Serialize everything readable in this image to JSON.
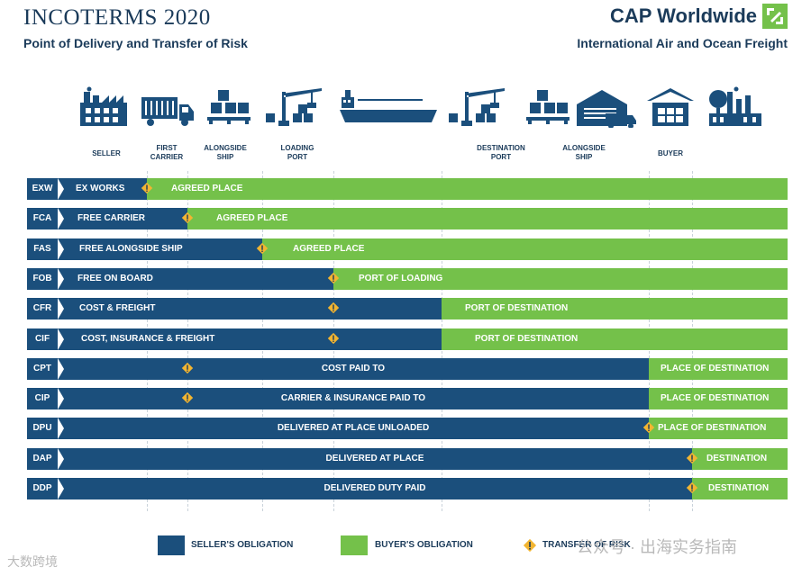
{
  "header": {
    "title": "INCOTERMS 2020",
    "subtitle": "Point of Delivery and Transfer of Risk",
    "brand": "CAP Worldwide",
    "brand_tagline": "International Air and Ocean Freight"
  },
  "stages": [
    {
      "label": "SELLER",
      "icon": "factory-icon"
    },
    {
      "label": "FIRST\nCARRIER",
      "icon": "truck-icon"
    },
    {
      "label": "ALONGSIDE\nSHIP",
      "icon": "pallets-icon"
    },
    {
      "label": "LOADING\nPORT",
      "icon": "crane-icon"
    },
    {
      "label": "",
      "icon": "ship-icon"
    },
    {
      "label": "DESTINATION\nPORT",
      "icon": "crane-icon"
    },
    {
      "label": "ALONGSIDE\nSHIP",
      "icon": "pallets-icon"
    },
    {
      "label": "",
      "icon": "warehouse-truck-icon"
    },
    {
      "label": "BUYER",
      "icon": "warehouse-icon"
    },
    {
      "label": "",
      "icon": "refinery-icon"
    }
  ],
  "terms": [
    {
      "code": "EXW",
      "name": "EX WORKS",
      "buyer_label": "AGREED PLACE"
    },
    {
      "code": "FCA",
      "name": "FREE CARRIER",
      "buyer_label": "AGREED PLACE"
    },
    {
      "code": "FAS",
      "name": "FREE ALONGSIDE SHIP",
      "buyer_label": "AGREED PLACE"
    },
    {
      "code": "FOB",
      "name": "FREE ON BOARD",
      "buyer_label": "PORT OF LOADING"
    },
    {
      "code": "CFR",
      "name": "COST & FREIGHT",
      "buyer_label": "PORT OF DESTINATION"
    },
    {
      "code": "CIF",
      "name": "COST, INSURANCE & FREIGHT",
      "buyer_label": "PORT OF DESTINATION"
    },
    {
      "code": "CPT",
      "name": "COST PAID TO",
      "buyer_label": "PLACE OF DESTINATION"
    },
    {
      "code": "CIP",
      "name": "CARRIER & INSURANCE PAID TO",
      "buyer_label": "PLACE OF DESTINATION"
    },
    {
      "code": "DPU",
      "name": "DELIVERED AT PLACE UNLOADED",
      "buyer_label": "PLACE OF DESTINATION"
    },
    {
      "code": "DAP",
      "name": "DELIVERED AT PLACE",
      "buyer_label": "DESTINATION"
    },
    {
      "code": "DDP",
      "name": "DELIVERED DUTY PAID",
      "buyer_label": "DESTINATION"
    }
  ],
  "legend": {
    "seller": "SELLER'S OBLIGATION",
    "buyer": "BUYER'S OBLIGATION",
    "risk": "TRANSFER OF RISK"
  },
  "watermarks": {
    "left": "大数跨境",
    "right": "公众号 · 出海实务指南"
  },
  "colors": {
    "seller": "#1b4f7c",
    "buyer": "#74c14a",
    "risk": "#f2b531",
    "text": "#1b3b5a"
  }
}
